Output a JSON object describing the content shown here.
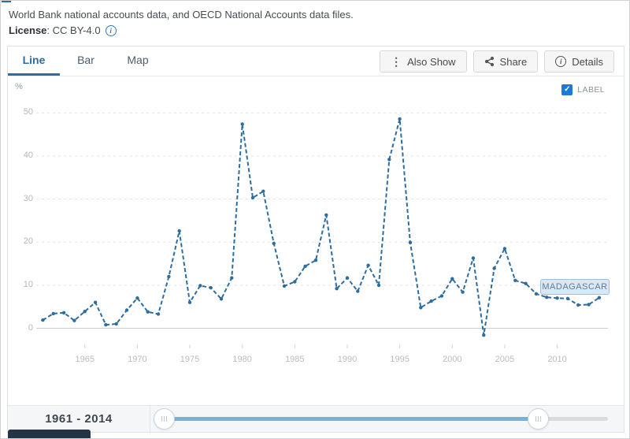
{
  "header": {
    "source_line": "World Bank national accounts data, and OECD National Accounts data files.",
    "license_label": "License",
    "license_value": ": CC BY-4.0"
  },
  "tabs": [
    {
      "label": "Line",
      "active": true
    },
    {
      "label": "Bar",
      "active": false
    },
    {
      "label": "Map",
      "active": false
    }
  ],
  "toolbar": {
    "also_show_label": "Also Show",
    "share_label": "Share",
    "details_label": "Details"
  },
  "chart": {
    "unit": "%",
    "label_toggle": "LABEL",
    "label_toggle_checked": true,
    "series_label": "MADAGASCAR"
  },
  "chart_data": {
    "type": "line",
    "ylabel": "%",
    "xlabel": "",
    "xlim": [
      1961,
      2014
    ],
    "ylim": [
      -5,
      55
    ],
    "y_ticks": [
      0,
      10,
      20,
      30,
      40,
      50
    ],
    "x_ticks": [
      1965,
      1970,
      1975,
      1980,
      1985,
      1990,
      1995,
      2000,
      2005,
      2010
    ],
    "grid": "horizontal-dashed",
    "legend_position": "inline-label",
    "series": [
      {
        "name": "MADAGASCAR",
        "x": [
          1961,
          1962,
          1963,
          1964,
          1965,
          1966,
          1967,
          1968,
          1969,
          1970,
          1971,
          1972,
          1973,
          1974,
          1975,
          1976,
          1977,
          1978,
          1979,
          1980,
          1981,
          1982,
          1983,
          1984,
          1985,
          1986,
          1987,
          1988,
          1989,
          1990,
          1991,
          1992,
          1993,
          1994,
          1995,
          1996,
          1997,
          1998,
          1999,
          2000,
          2001,
          2002,
          2003,
          2004,
          2005,
          2006,
          2007,
          2008,
          2009,
          2010,
          2011,
          2012,
          2013,
          2014
        ],
        "y": [
          1.9,
          3.4,
          3.6,
          1.8,
          3.9,
          6.0,
          0.8,
          1.0,
          4.2,
          7.0,
          3.8,
          3.3,
          12.0,
          22.6,
          6.0,
          9.9,
          9.4,
          6.8,
          11.7,
          47.4,
          30.3,
          31.8,
          19.7,
          9.8,
          10.8,
          14.4,
          15.8,
          26.3,
          9.2,
          11.7,
          8.6,
          14.6,
          10.0,
          39.2,
          48.6,
          19.9,
          4.8,
          6.3,
          7.5,
          11.5,
          8.4,
          16.3,
          -1.6,
          13.9,
          18.5,
          11.1,
          10.4,
          8.0,
          7.2,
          7.0,
          6.9,
          5.4,
          5.5,
          7.1
        ]
      }
    ]
  },
  "footer": {
    "range_label": "1961 - 2014"
  },
  "colors": {
    "accent": "#2d6d9f",
    "checkbox": "#1e78d7",
    "slider_fill": "#74b2d8",
    "pill_bg": "#d9e8f4",
    "grid": "#e3e3e3"
  }
}
